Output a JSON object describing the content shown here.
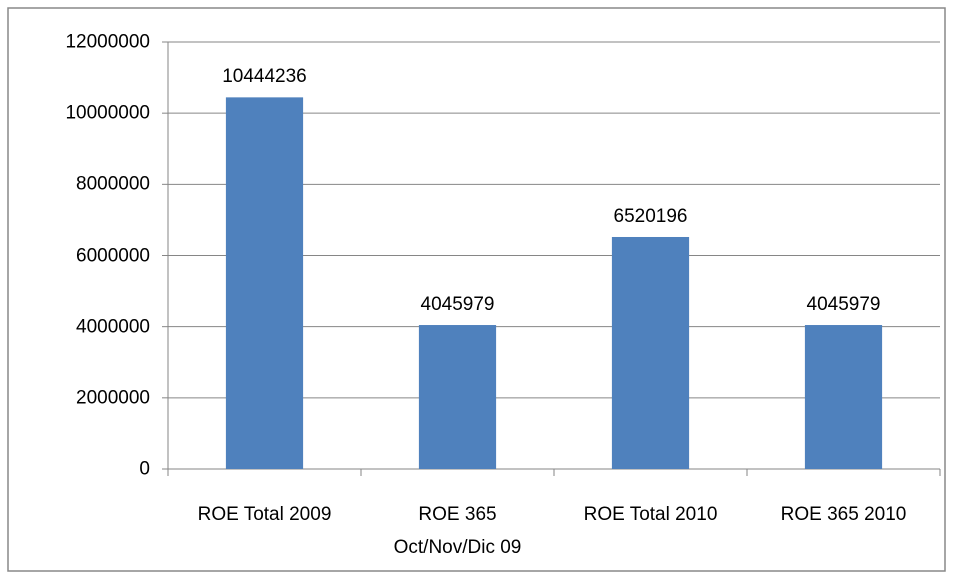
{
  "chart_data": {
    "type": "bar",
    "categories": [
      "ROE Total 2009",
      "ROE 365 Oct/Nov/Dic 09",
      "ROE Total 2010",
      "ROE 365 2010"
    ],
    "values": [
      10444236,
      4045979,
      6520196,
      4045979
    ],
    "color": "#4f81bd",
    "ylim": [
      0,
      12000000
    ],
    "yticks": [
      0,
      2000000,
      4000000,
      6000000,
      8000000,
      10000000,
      12000000
    ],
    "grid": true
  }
}
